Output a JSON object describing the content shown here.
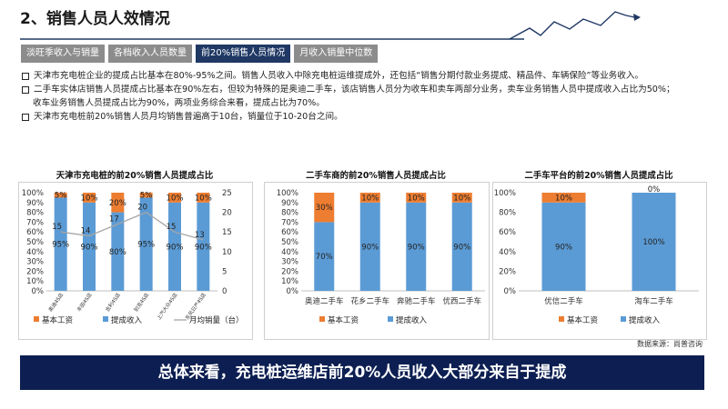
{
  "page": {
    "title": "2、销售人员人效情况",
    "tabs": [
      "淡旺季收入与销量",
      "各档收入人员数量",
      "前20%销售人员情况",
      "月收入销量中位数"
    ],
    "active_tab": 2,
    "bullets": [
      "天津市充电桩企业的提成占比基本在80%-95%之间。销售人员收入中除充电桩运维提成外，还包括“销售分期付款业务提成、精品件、车辆保险”等业务收入。",
      "二手车实体店销售人员提成占比基本在90%左右，但较为特殊的是奥迪二手车，该店销售人员分为收车和卖车两部分业务，卖车业务销售人员中提成收入占比为50%；",
      "天津市充电桩前20%销售人员月均销售普遍高于10台，销量位于10-20台之间。"
    ],
    "bullet_continuation": "收车业务销售人员提成占比为90%，两项业务综合来看，提成占比为70%。",
    "source": "数据来源：尚普咨询",
    "banner": "总体来看，充电桩运维店前20%人员收入大部分来自于提成"
  },
  "colors": {
    "base": "#ED7D31",
    "commission": "#5B9BD5",
    "line": "#A5A5A5",
    "accent_navy": "#1F3864",
    "banner": "#0D1F52"
  },
  "chart_data": [
    {
      "type": "bar",
      "stacked": true,
      "title": "天津市充电桩的前20%销售人员提成占比",
      "categories": [
        "奥迪4S店",
        "丰田4S店",
        "吉利4S店",
        "别克4S店",
        "上汽大众4S店",
        "东风日产4S店"
      ],
      "series": [
        {
          "name": "提成收入",
          "values": [
            95,
            90,
            80,
            95,
            90,
            90
          ],
          "labels": [
            "95%",
            "90%",
            "80%",
            "95%",
            "90%",
            "90%"
          ]
        },
        {
          "name": "基本工资",
          "values": [
            5,
            10,
            20,
            5,
            10,
            10
          ],
          "labels": [
            "5%",
            "10%",
            "20%",
            "5%",
            "10%",
            "10%"
          ]
        }
      ],
      "line_series": {
        "name": "月均销量（台）",
        "values": [
          15,
          14,
          17,
          20,
          15,
          13
        ],
        "labels": [
          "15",
          "14",
          "17",
          "20",
          "15",
          "13"
        ],
        "axis": "secondary"
      },
      "ylim": [
        0,
        100
      ],
      "y_ticks": [
        "0%",
        "10%",
        "20%",
        "30%",
        "40%",
        "50%",
        "60%",
        "70%",
        "80%",
        "90%",
        "100%"
      ],
      "y2lim": [
        0,
        25
      ],
      "y2_ticks": [
        "0",
        "5",
        "10",
        "15",
        "20",
        "25"
      ],
      "legend": [
        "基本工资",
        "提成收入",
        "月均销量（台）"
      ]
    },
    {
      "type": "bar",
      "stacked": true,
      "title": "二手车商的前20%销售人员提成占比",
      "categories": [
        "奥迪二手车",
        "花乡二手车",
        "奔驰二手车",
        "优西二手车"
      ],
      "series": [
        {
          "name": "提成收入",
          "values": [
            70,
            90,
            90,
            90
          ],
          "labels": [
            "70%",
            "90%",
            "90%",
            "90%"
          ]
        },
        {
          "name": "基本工资",
          "values": [
            30,
            10,
            10,
            10
          ],
          "labels": [
            "30%",
            "10%",
            "10%",
            "10%"
          ]
        }
      ],
      "ylim": [
        0,
        100
      ],
      "y_ticks": [
        "0%",
        "10%",
        "20%",
        "30%",
        "40%",
        "50%",
        "60%",
        "70%",
        "80%",
        "90%",
        "100%"
      ],
      "legend": [
        "基本工资",
        "提成收入"
      ]
    },
    {
      "type": "bar",
      "stacked": true,
      "title": "二手车平台的前20%销售人员提成占比",
      "categories": [
        "优信二手车",
        "淘车二手车"
      ],
      "series": [
        {
          "name": "提成收入",
          "values": [
            90,
            100
          ],
          "labels": [
            "90%",
            "100%"
          ]
        },
        {
          "name": "基本工资",
          "values": [
            10,
            0
          ],
          "labels": [
            "10%",
            "0%"
          ]
        }
      ],
      "ylim": [
        0,
        100
      ],
      "y_ticks": [
        "0%",
        "20%",
        "40%",
        "60%",
        "80%",
        "100%"
      ],
      "legend": [
        "基本工资",
        "提成收入"
      ]
    }
  ]
}
